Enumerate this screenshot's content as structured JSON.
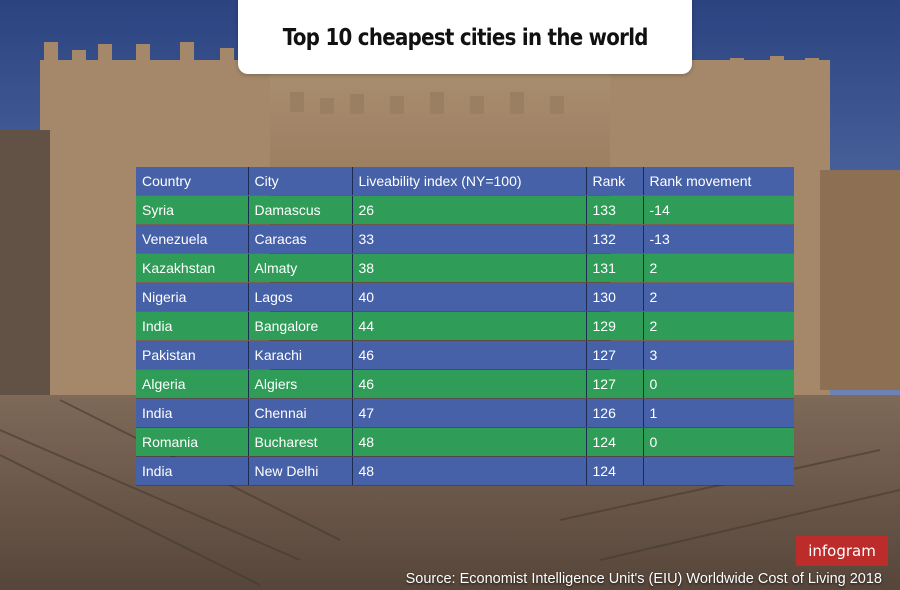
{
  "title": "Top 10 cheapest cities in the world",
  "source": "Source:  Economist Intelligence Unit's (EIU) Worldwide Cost of Living 2018",
  "badge": "infogram",
  "colors": {
    "header": "#4661a8",
    "row_green": "#2f9c58",
    "row_blue": "#4661a8",
    "title_card": "#ffffff"
  },
  "chart_data": {
    "type": "table",
    "title": "Top 10 cheapest cities in the world",
    "columns": [
      "Country",
      "City",
      "Liveability index (NY=100)",
      "Rank",
      "Rank movement"
    ],
    "rows": [
      [
        "Syria",
        "Damascus",
        "26",
        "133",
        "-14"
      ],
      [
        "Venezuela",
        "Caracas",
        "33",
        "132",
        "-13"
      ],
      [
        "Kazakhstan",
        "Almaty",
        "38",
        "131",
        "2"
      ],
      [
        "Nigeria",
        "Lagos",
        "40",
        "130",
        "2"
      ],
      [
        "India",
        "Bangalore",
        "44",
        "129",
        "2"
      ],
      [
        "Pakistan",
        "Karachi",
        "46",
        "127",
        "3"
      ],
      [
        "Algeria",
        "Algiers",
        "46",
        "127",
        "0"
      ],
      [
        "India",
        "Chennai",
        "47",
        "126",
        "1"
      ],
      [
        "Romania",
        "Bucharest",
        "48",
        "124",
        "0"
      ],
      [
        "India",
        "New Delhi",
        "48",
        "124",
        ""
      ]
    ]
  }
}
